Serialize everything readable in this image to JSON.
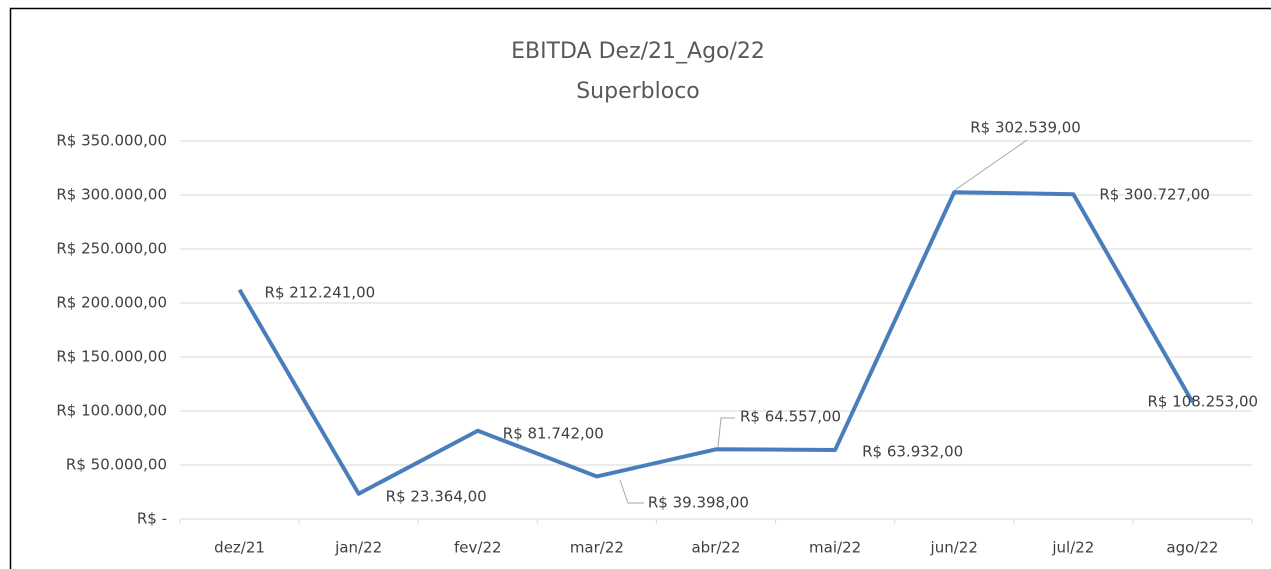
{
  "chart_data": {
    "type": "line",
    "title": "EBITDA Dez/21_Ago/22",
    "subtitle": "Superbloco",
    "categories": [
      "dez/21",
      "jan/22",
      "fev/22",
      "mar/22",
      "abr/22",
      "mai/22",
      "jun/22",
      "jul/22",
      "ago/22"
    ],
    "series": [
      {
        "name": "EBITDA",
        "color": "#4a7ebb",
        "values": [
          212241,
          23364,
          81742,
          39398,
          64557,
          63932,
          302539,
          300727,
          108253
        ],
        "value_labels": [
          "R$ 212.241,00",
          "R$ 23.364,00",
          "R$ 81.742,00",
          "R$ 39.398,00",
          "R$ 64.557,00",
          "R$ 63.932,00",
          "R$ 302.539,00",
          "R$ 300.727,00",
          "R$ 108.253,00"
        ]
      }
    ],
    "ylim": [
      0,
      350000
    ],
    "yticks": [
      {
        "value": 0,
        "label": "R$ -"
      },
      {
        "value": 50000,
        "label": "R$ 50.000,00"
      },
      {
        "value": 100000,
        "label": "R$ 100.000,00"
      },
      {
        "value": 150000,
        "label": "R$ 150.000,00"
      },
      {
        "value": 200000,
        "label": "R$ 200.000,00"
      },
      {
        "value": 250000,
        "label": "R$ 250.000,00"
      },
      {
        "value": 300000,
        "label": "R$ 300.000,00"
      },
      {
        "value": 350000,
        "label": "R$ 350.000,00"
      }
    ],
    "grid": true
  }
}
